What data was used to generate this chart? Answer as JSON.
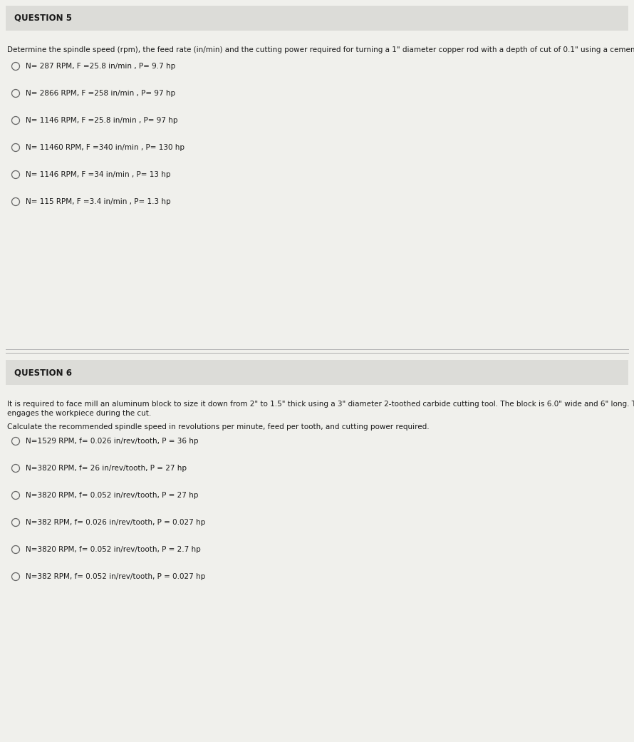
{
  "bg_color": "#f0f0ec",
  "q5_title": "QUESTION 5",
  "q5_description": "Determine the spindle speed (rpm), the feed rate (in/min) and the cutting power required for turning a 1\" diameter copper rod with a depth of cut of 0.1\" using a cemented carbide tool.",
  "q5_options": [
    "N= 287 RPM, F =25.8 in/min , P= 9.7 hp",
    "N= 2866 RPM, F =258 in/min , P= 97 hp",
    "N= 1146 RPM, F =25.8 in/min , P= 97 hp",
    "N= 11460 RPM, F =340 in/min , P= 130 hp",
    "N= 1146 RPM, F =34 in/min , P= 13 hp",
    "N= 115 RPM, F =3.4 in/min , P= 1.3 hp"
  ],
  "q6_title": "QUESTION 6",
  "q6_description1": "It is required to face mill an aluminum block to size it down from 2\" to 1.5\" thick using a 3\" diameter 2-toothed carbide cutting tool. The block is 6.0\" wide and 6\" long. The entire tool diameter\nengages the workpiece during the cut.",
  "q6_description2": "Calculate the recommended spindle speed in revolutions per minute, feed per tooth, and cutting power required.",
  "q6_options": [
    "N=1529 RPM, f= 0.026 in/rev/tooth, P = 36 hp",
    "N=3820 RPM, f= 26 in/rev/tooth, P = 27 hp",
    "N=3820 RPM, f= 0.052 in/rev/tooth, P = 27 hp",
    "N=382 RPM, f= 0.026 in/rev/tooth, P = 0.027 hp",
    "N=3820 RPM, f= 0.052 in/rev/tooth, P = 2.7 hp",
    "N=382 RPM, f= 0.052 in/rev/tooth, P = 0.027 hp"
  ],
  "title_fontsize": 8.5,
  "body_fontsize": 7.5,
  "option_fontsize": 7.5,
  "text_color": "#1a1a1a",
  "circle_color": "#666666",
  "title_bg_color": "#dcdcd8",
  "divider_color": "#b0b0b0",
  "fig_width": 8.9,
  "fig_height": 10.41,
  "dpi": 100
}
